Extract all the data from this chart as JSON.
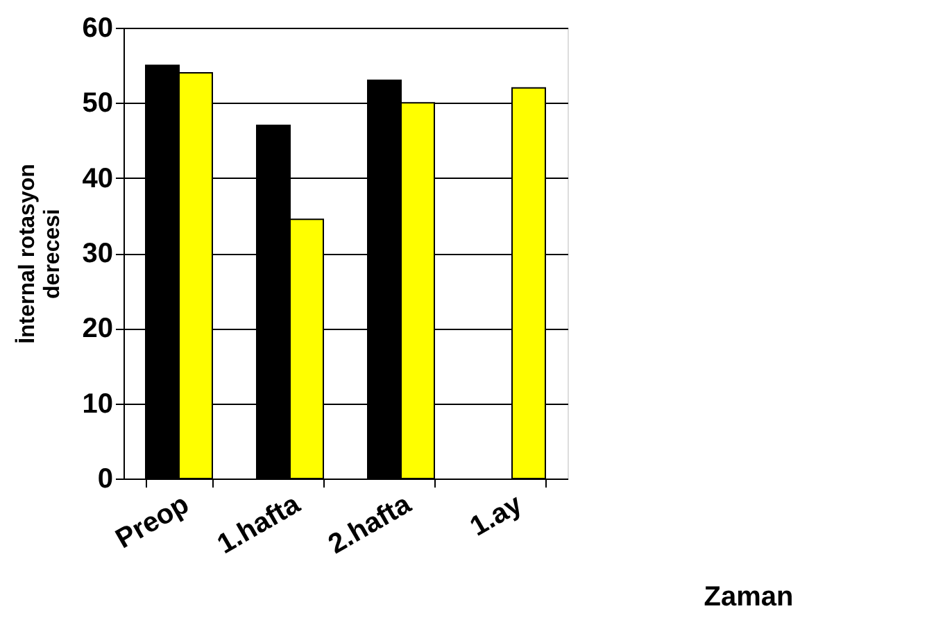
{
  "chart_data": {
    "type": "bar",
    "xlabel": "Zaman",
    "ylabel": "İnternal rotasyon\nderecesi",
    "categories": [
      "Preop",
      "1.hafta",
      "2.hafta",
      "1.ay"
    ],
    "series": [
      {
        "color": "#000000",
        "values": [
          55,
          47,
          53,
          null
        ]
      },
      {
        "color": "#ffff00",
        "values": [
          54,
          34.5,
          50,
          52
        ]
      }
    ],
    "ylim": [
      0,
      60
    ],
    "yticks": [
      0,
      10,
      20,
      30,
      40,
      50,
      60
    ],
    "grid": "y",
    "legend": false
  }
}
